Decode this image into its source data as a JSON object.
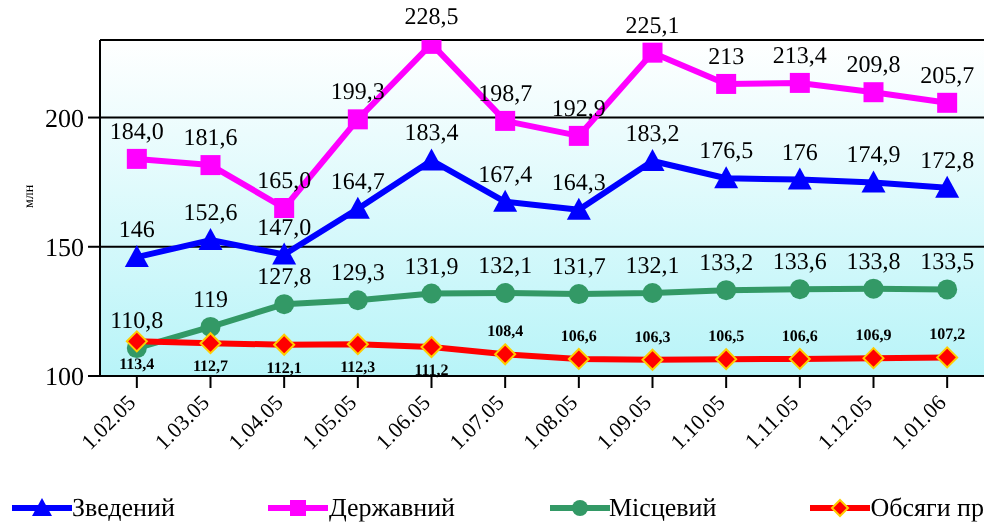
{
  "chart_data": {
    "type": "line",
    "ylabel": "млн",
    "categories": [
      "1.02.05",
      "1.03.05",
      "1.04.05",
      "1.05.05",
      "1.06.05",
      "1.07.05",
      "1.08.05",
      "1.09.05",
      "1.10.05",
      "1.11.05",
      "1.12.05",
      "1.01.06"
    ],
    "series": [
      {
        "name": "Зведений",
        "color": "#0000ff",
        "marker": "triangle",
        "values": [
          146,
          152.6,
          147.0,
          164.7,
          183.4,
          167.4,
          164.3,
          183.2,
          176.5,
          176,
          174.9,
          172.8
        ],
        "value_labels": [
          "146",
          "152,6",
          "147,0",
          "164,7",
          "183,4",
          "167,4",
          "164,3",
          "183,2",
          "176,5",
          "176",
          "174,9",
          "172,8"
        ]
      },
      {
        "name": "Державний",
        "color": "#ff00ff",
        "marker": "square",
        "values": [
          184.0,
          181.6,
          165.0,
          199.3,
          228.5,
          198.7,
          192.9,
          225.1,
          213,
          213.4,
          209.8,
          205.7
        ],
        "value_labels": [
          "184,0",
          "181,6",
          "165,0",
          "199,3",
          "228,5",
          "198,7",
          "192,9",
          "225,1",
          "213",
          "213,4",
          "209,8",
          "205,7"
        ]
      },
      {
        "name": "Місцевий",
        "color": "#339966",
        "marker": "circle",
        "values": [
          110.8,
          119,
          127.8,
          129.3,
          131.9,
          132.1,
          131.7,
          132.1,
          133.2,
          133.6,
          133.8,
          133.5
        ],
        "value_labels": [
          "110,8",
          "119",
          "127,8",
          "129,3",
          "131,9",
          "132,1",
          "131,7",
          "132,1",
          "133,2",
          "133,6",
          "133,8",
          "133,5"
        ]
      },
      {
        "name": "Обсяги пр",
        "color": "#ff0000",
        "marker": "diamond",
        "values": [
          113.4,
          112.7,
          112.1,
          112.3,
          111.2,
          108.4,
          106.6,
          106.3,
          106.5,
          106.6,
          106.9,
          107.2
        ],
        "value_labels": [
          "113,4",
          "112,7",
          "112,1",
          "112,3",
          "111,2",
          "108,4",
          "106,6",
          "106,3",
          "106,5",
          "106,6",
          "106,9",
          "107,2"
        ]
      }
    ],
    "ylim": [
      100,
      230
    ],
    "yticks": [
      100,
      150,
      200
    ],
    "grid": "y",
    "legend": "bottom"
  }
}
